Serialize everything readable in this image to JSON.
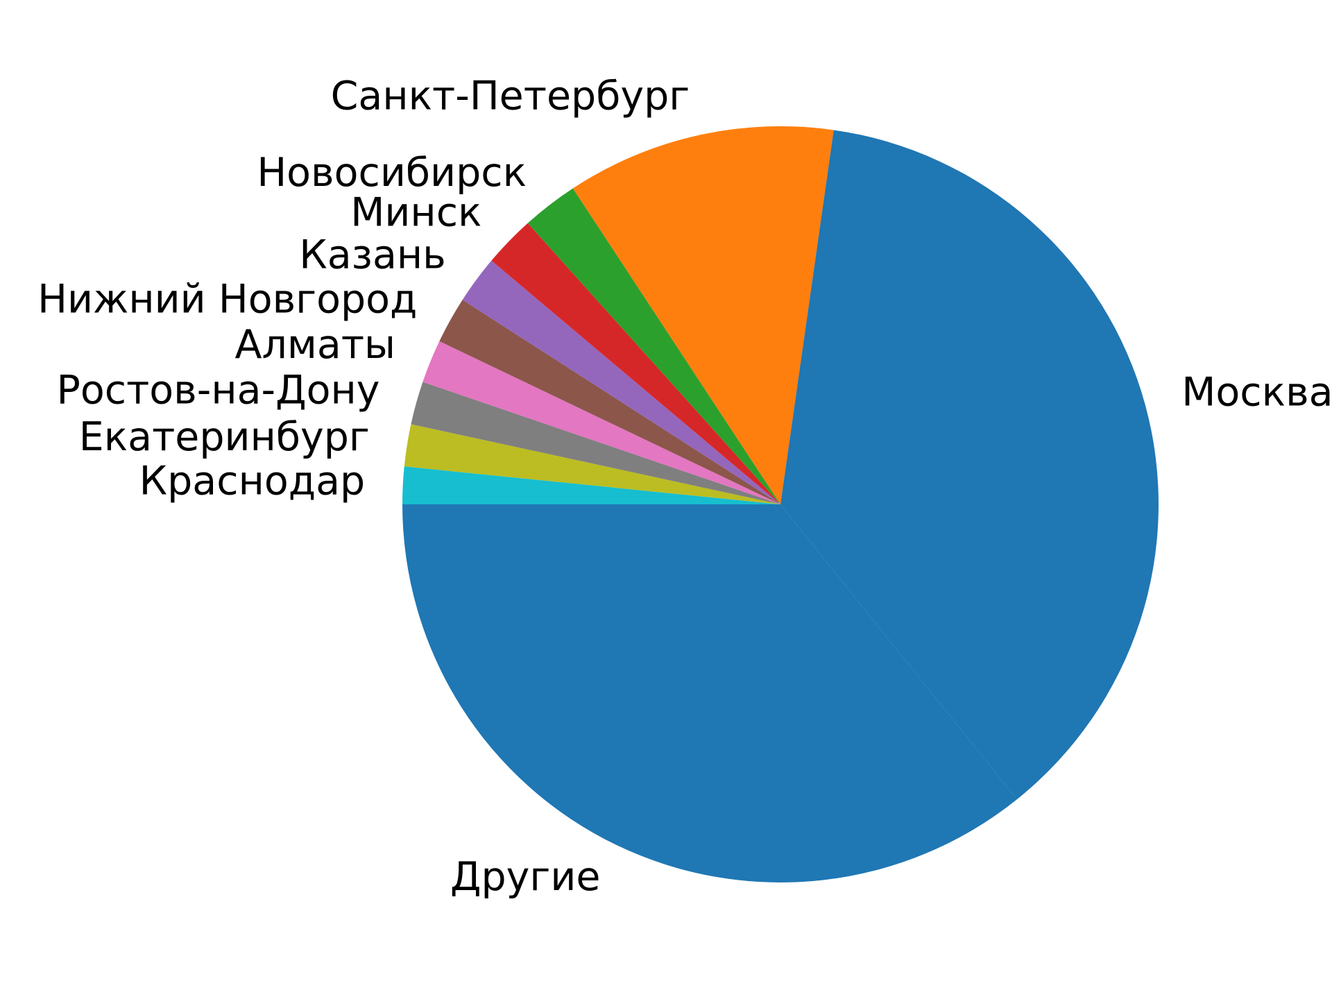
{
  "chart_data": {
    "type": "pie",
    "start_angle_deg": 180,
    "direction": "clockwise",
    "legend": "none",
    "slices": [
      {
        "label": "Краснодар",
        "value": 1.6,
        "color": "#17becf"
      },
      {
        "label": "Екатеринбург",
        "value": 1.8,
        "color": "#bcbd22"
      },
      {
        "label": "Ростов-на-Дону",
        "value": 1.85,
        "color": "#7f7f7f"
      },
      {
        "label": "Алматы",
        "value": 1.85,
        "color": "#e377c2"
      },
      {
        "label": "Нижний Новгород",
        "value": 2.0,
        "color": "#8c564b"
      },
      {
        "label": "Казань",
        "value": 2.05,
        "color": "#9467bd"
      },
      {
        "label": "Минск",
        "value": 2.2,
        "color": "#d62728"
      },
      {
        "label": "Новосибирск",
        "value": 2.4,
        "color": "#2ca02c"
      },
      {
        "label": "Санкт-Петербург",
        "value": 11.5,
        "color": "#ff7f0e"
      },
      {
        "label": "Москва",
        "value": 37.0,
        "color": "#1f77b4"
      },
      {
        "label": "Другие",
        "value": 35.75,
        "color": "#1f77b4"
      }
    ]
  }
}
